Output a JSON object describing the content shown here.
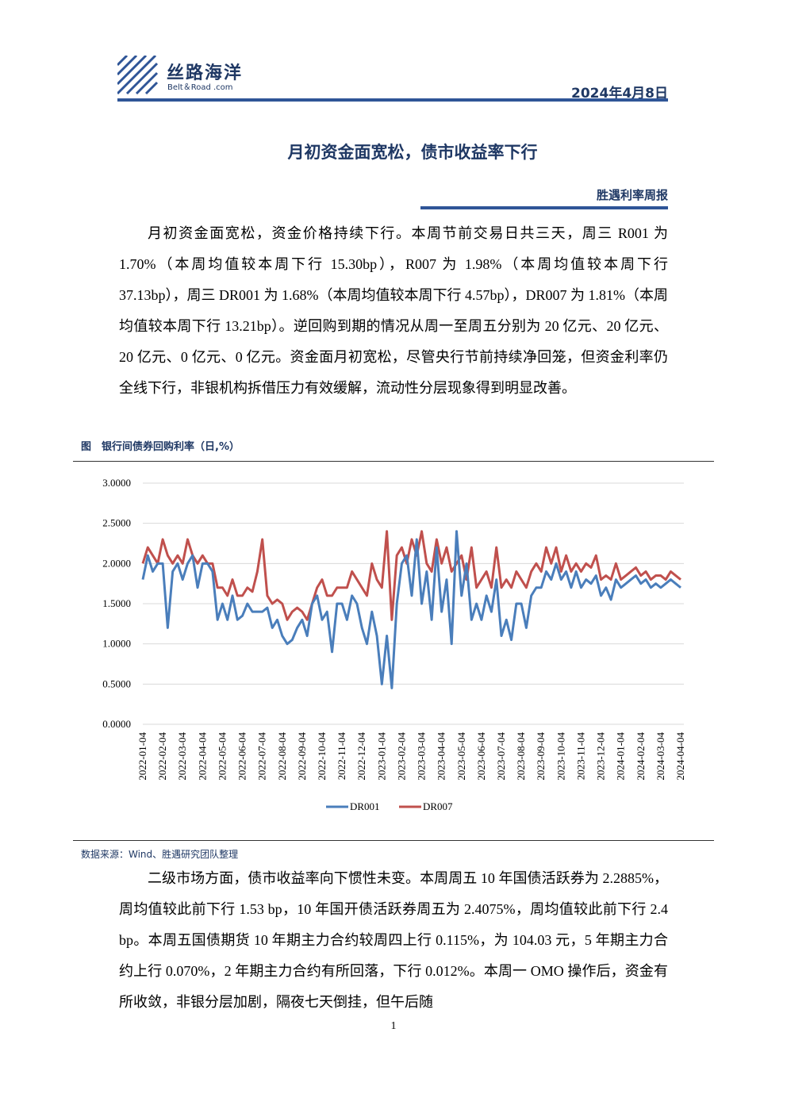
{
  "header": {
    "logo": "丝路海洋",
    "logo_sub": "Belt＆Road .com",
    "date": "2024年4月8日"
  },
  "title": "月初资金面宽松，债市收益率下行",
  "subtitle": "胜遇利率周报",
  "paragraph_1": "月初资金面宽松，资金价格持续下行。本周节前交易日共三天，周三 R001 为 1.70%（本周均值较本周下行 15.30bp），R007 为 1.98%（本周均值较本周下行 37.13bp），周三 DR001 为 1.68%（本周均值较本周下行 4.57bp），DR007 为 1.81%（本周均值较本周下行 13.21bp）。逆回购到期的情况从周一至周五分别为 20 亿元、20 亿元、20 亿元、0 亿元、0 亿元。资金面月初宽松，尽管央行节前持续净回笼，但资金利率仍全线下行，非银机构拆借压力有效缓解，流动性分层现象得到明显改善。",
  "figure_caption": "图　银行间债券回购利率（日,%）",
  "source": "数据来源：Wind、胜遇研究团队整理",
  "paragraph_2": "二级市场方面，债市收益率向下惯性未变。本周周五 10 年国债活跃券为 2.2885%，周均值较此前下行 1.53 bp，10 年国开债活跃券周五为 2.4075%，周均值较此前下行 2.4 bp。本周五国债期货 10 年期主力合约较周四上行 0.115%，为 104.03 元，5 年期主力合约上行 0.070%，2 年期主力合约有所回落，下行 0.012%。本周一 OMO 操作后，资金有所收敛，非银分层加剧，隔夜七天倒挂，但午后随",
  "page_number": "1",
  "chart_data": {
    "type": "line",
    "categories": [
      "2022-01-04",
      null,
      null,
      null,
      "2022-02-04",
      null,
      null,
      null,
      "2022-03-04",
      null,
      null,
      null,
      "2022-04-04",
      null,
      null,
      null,
      "2022-05-04",
      null,
      null,
      null,
      "2022-06-04",
      null,
      null,
      null,
      "2022-07-04",
      null,
      null,
      null,
      "2022-08-04",
      null,
      null,
      null,
      "2022-09-04",
      null,
      null,
      null,
      "2022-10-04",
      null,
      null,
      null,
      "2022-11-04",
      null,
      null,
      null,
      "2022-12-04",
      null,
      null,
      null,
      "2023-01-04",
      null,
      null,
      null,
      "2023-02-04",
      null,
      null,
      null,
      "2023-03-04",
      null,
      null,
      null,
      "2023-04-04",
      null,
      null,
      null,
      "2023-05-04",
      null,
      null,
      null,
      "2023-06-04",
      null,
      null,
      null,
      "2023-07-04",
      null,
      null,
      null,
      "2023-08-04",
      null,
      null,
      null,
      "2023-09-04",
      null,
      null,
      null,
      "2023-10-04",
      null,
      null,
      null,
      "2023-11-04",
      null,
      null,
      null,
      "2023-12-04",
      null,
      null,
      null,
      "2024-01-04",
      null,
      null,
      null,
      "2024-02-04",
      null,
      null,
      null,
      "2024-03-04",
      null,
      null,
      null,
      "2024-04-04"
    ],
    "series": [
      {
        "name": "DR001",
        "color": "#4a7ebb",
        "values": [
          1.8,
          2.1,
          1.9,
          2.0,
          2.0,
          1.2,
          1.9,
          2.0,
          1.8,
          2.0,
          2.1,
          1.7,
          2.0,
          2.0,
          1.9,
          1.3,
          1.5,
          1.3,
          1.6,
          1.3,
          1.35,
          1.5,
          1.4,
          1.4,
          1.4,
          1.45,
          1.2,
          1.3,
          1.1,
          1.0,
          1.05,
          1.2,
          1.3,
          1.1,
          1.5,
          1.6,
          1.3,
          1.4,
          0.9,
          1.5,
          1.5,
          1.3,
          1.6,
          1.5,
          1.2,
          1.0,
          1.4,
          1.1,
          0.5,
          1.1,
          0.45,
          1.5,
          2.0,
          2.1,
          1.6,
          2.3,
          1.5,
          1.9,
          1.3,
          2.2,
          1.4,
          1.8,
          1.0,
          2.4,
          1.6,
          2.0,
          1.3,
          1.5,
          1.3,
          1.6,
          1.4,
          1.8,
          1.1,
          1.3,
          1.05,
          1.5,
          1.5,
          1.2,
          1.6,
          1.7,
          1.7,
          1.9,
          1.8,
          2.0,
          1.8,
          1.9,
          1.7,
          1.9,
          1.7,
          1.8,
          1.75,
          1.85,
          1.6,
          1.7,
          1.55,
          1.8,
          1.7,
          1.75,
          1.8,
          1.85,
          1.75,
          1.8,
          1.7,
          1.75,
          1.7,
          1.75,
          1.8,
          1.75,
          1.7
        ]
      },
      {
        "name": "DR007",
        "color": "#c0504d",
        "values": [
          2.0,
          2.2,
          2.1,
          2.0,
          2.3,
          2.1,
          2.0,
          2.1,
          2.0,
          2.3,
          2.1,
          2.0,
          2.1,
          2.0,
          2.0,
          1.7,
          1.7,
          1.6,
          1.8,
          1.6,
          1.6,
          1.7,
          1.65,
          1.9,
          2.3,
          1.6,
          1.5,
          1.55,
          1.5,
          1.3,
          1.4,
          1.45,
          1.4,
          1.3,
          1.5,
          1.7,
          1.8,
          1.6,
          1.6,
          1.7,
          1.7,
          1.7,
          1.9,
          1.8,
          1.7,
          1.6,
          2.0,
          1.8,
          1.7,
          2.4,
          1.3,
          2.1,
          2.2,
          2.0,
          2.3,
          2.1,
          2.4,
          2.0,
          1.9,
          2.3,
          2.0,
          2.2,
          1.9,
          2.0,
          2.1,
          1.8,
          2.2,
          1.7,
          1.8,
          1.9,
          1.7,
          2.2,
          1.7,
          1.8,
          1.7,
          1.9,
          1.8,
          1.7,
          1.9,
          2.0,
          1.9,
          2.2,
          2.0,
          2.2,
          1.9,
          2.1,
          1.9,
          2.0,
          1.9,
          2.0,
          1.95,
          2.1,
          1.8,
          1.85,
          1.8,
          2.0,
          1.8,
          1.85,
          1.9,
          1.95,
          1.85,
          1.9,
          1.8,
          1.85,
          1.85,
          1.8,
          1.9,
          1.85,
          1.8
        ]
      }
    ],
    "ylim": [
      0,
      3
    ],
    "yticks": [
      {
        "value": 0,
        "label": "0.0000"
      },
      {
        "value": 0.5,
        "label": "0.5000"
      },
      {
        "value": 1,
        "label": "1.0000"
      },
      {
        "value": 1.5,
        "label": "1.5000"
      },
      {
        "value": 2,
        "label": "2.0000"
      },
      {
        "value": 2.5,
        "label": "2.5000"
      },
      {
        "value": 3,
        "label": "3.0000"
      }
    ],
    "grid": true
  }
}
